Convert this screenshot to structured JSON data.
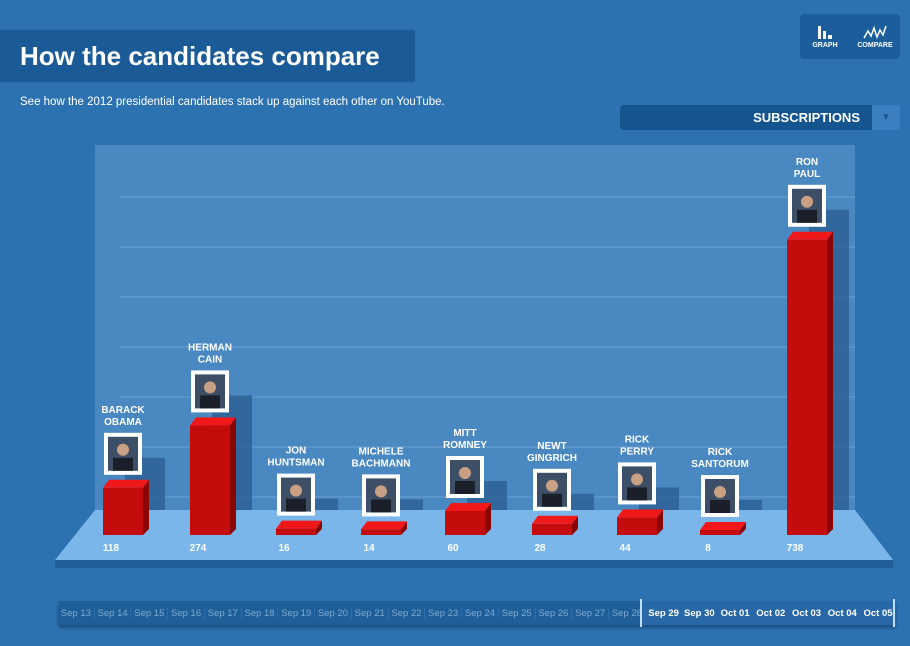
{
  "header": {
    "title": "How the candidates compare",
    "subtitle": "See how the 2012 presidential candidates stack up against each other on YouTube."
  },
  "modes": [
    {
      "label": "GRAPH",
      "icon": "bar-graph-icon"
    },
    {
      "label": "COMPARE",
      "icon": "line-compare-icon"
    }
  ],
  "metric_dropdown": {
    "selected": "SUBSCRIPTIONS"
  },
  "chart_data": {
    "type": "bar",
    "title": "How the candidates compare",
    "ylabel": "Subscriptions",
    "ylim": [
      0,
      760
    ],
    "categories": [
      [
        "BARACK",
        "OBAMA"
      ],
      [
        "HERMAN",
        "CAIN"
      ],
      [
        "JON",
        "HUNTSMAN"
      ],
      [
        "MICHELE",
        "BACHMANN"
      ],
      [
        "MITT",
        "ROMNEY"
      ],
      [
        "NEWT",
        "GINGRICH"
      ],
      [
        "RICK",
        "PERRY"
      ],
      [
        "RICK",
        "SANTORUM"
      ],
      [
        "RON",
        "PAUL"
      ]
    ],
    "values": [
      118,
      274,
      16,
      14,
      60,
      28,
      44,
      8,
      738
    ],
    "value_labels": [
      "118",
      "274",
      "16",
      "14",
      "60",
      "28",
      "44",
      "8",
      "738"
    ]
  },
  "colors": {
    "bar": "#c40c0c",
    "bar_top": "#f01818",
    "floor": "#7ab6ea",
    "background": "#2d72b0"
  },
  "timeline": {
    "days": [
      "Sep 13",
      "Sep 14",
      "Sep 15",
      "Sep 16",
      "Sep 17",
      "Sep 18",
      "Sep 19",
      "Sep 20",
      "Sep 21",
      "Sep 22",
      "Sep 23",
      "Sep 24",
      "Sep 25",
      "Sep 26",
      "Sep 27",
      "Sep 28",
      "Sep 29",
      "Sep 30",
      "Oct 01",
      "Oct 02",
      "Oct 03",
      "Oct 04",
      "Oct 05"
    ],
    "selected_start": "Sep 29",
    "selected_end": "Oct 05"
  }
}
